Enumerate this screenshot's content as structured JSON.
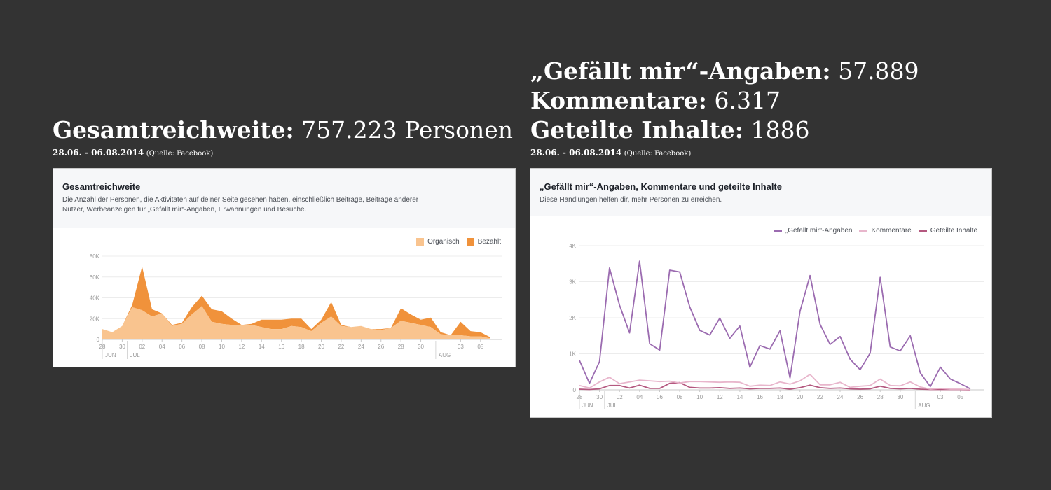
{
  "left": {
    "heading_label": "Gesamtreichweite:",
    "heading_value": "757.223 Personen",
    "dates": "28.06. - 06.08.2014",
    "source": "(Quelle: Facebook)"
  },
  "right": {
    "heading_lines": [
      {
        "label": "„Gefällt mir“-Angaben:",
        "value": "57.889"
      },
      {
        "label": "Kommentare:",
        "value": "6.317"
      },
      {
        "label": "Geteilte Inhalte:",
        "value": "1886"
      }
    ],
    "dates": "28.06. - 06.08.2014",
    "source": "(Quelle: Facebook)"
  },
  "panel_left": {
    "title": "Gesamtreichweite",
    "description_lines": [
      "Die Anzahl der Personen, die Aktivitäten auf deiner Seite gesehen haben, einschließlich Beiträge, Beiträge anderer",
      "Nutzer, Werbeanzeigen für „Gefällt mir“-Angaben, Erwähnungen und Besuche."
    ],
    "legend": [
      {
        "label": "Organisch",
        "color": "#f9c48f"
      },
      {
        "label": "Bezahlt",
        "color": "#f0923b"
      }
    ]
  },
  "panel_right": {
    "title": "„Gefällt mir“-Angaben, Kommentare und geteilte Inhalte",
    "description": "Diese Handlungen helfen dir, mehr Personen zu erreichen.",
    "legend": [
      {
        "label": "„Gefällt mir“-Angaben",
        "color": "#9b6bb0"
      },
      {
        "label": "Kommentare",
        "color": "#e8b6cc"
      },
      {
        "label": "Geteilte Inhalte",
        "color": "#b4587f"
      }
    ]
  },
  "chart_data": [
    {
      "type": "area",
      "stacked": true,
      "x": [
        "28.06",
        "29.06",
        "30.06",
        "01.07",
        "02.07",
        "03.07",
        "04.07",
        "05.07",
        "06.07",
        "07.07",
        "08.07",
        "09.07",
        "10.07",
        "11.07",
        "12.07",
        "13.07",
        "14.07",
        "15.07",
        "16.07",
        "17.07",
        "18.07",
        "19.07",
        "20.07",
        "21.07",
        "22.07",
        "23.07",
        "24.07",
        "25.07",
        "26.07",
        "27.07",
        "28.07",
        "29.07",
        "30.07",
        "31.07",
        "01.08",
        "02.08",
        "03.08",
        "04.08",
        "05.08",
        "06.08"
      ],
      "x_tick_labels": [
        "28",
        "30",
        "02",
        "04",
        "06",
        "08",
        "10",
        "12",
        "14",
        "16",
        "18",
        "20",
        "22",
        "24",
        "26",
        "28",
        "30",
        "03",
        "05"
      ],
      "x_tick_indices": [
        0,
        2,
        4,
        6,
        8,
        10,
        12,
        14,
        16,
        18,
        20,
        22,
        24,
        26,
        28,
        30,
        32,
        36,
        38
      ],
      "month_labels": [
        {
          "label": "JUN",
          "index": 0
        },
        {
          "label": "JUL",
          "index": 3
        },
        {
          "label": "AUG",
          "index": 34
        }
      ],
      "y_ticks": [
        "0",
        "20K",
        "40K",
        "60K",
        "80K"
      ],
      "ylim": [
        0,
        80000
      ],
      "series": [
        {
          "name": "Organisch",
          "values": [
            10000,
            7000,
            13000,
            31000,
            28000,
            22000,
            25000,
            13000,
            15000,
            24000,
            32000,
            17000,
            15000,
            14000,
            14000,
            14000,
            12000,
            10000,
            10000,
            13000,
            12000,
            8000,
            16000,
            22000,
            13000,
            12000,
            13000,
            10000,
            9000,
            11000,
            18000,
            16000,
            14000,
            12000,
            5000,
            4000,
            4000,
            3000,
            3000,
            1000
          ]
        },
        {
          "name": "Bezahlt",
          "values": [
            0,
            0,
            0,
            2000,
            42000,
            7000,
            0,
            1000,
            1000,
            7000,
            10000,
            12000,
            12000,
            6000,
            0,
            1000,
            7000,
            9000,
            9000,
            7000,
            8000,
            2000,
            3000,
            14000,
            1000,
            0,
            0,
            0,
            1000,
            0,
            12000,
            8000,
            5000,
            9000,
            2000,
            0,
            13000,
            5000,
            4000,
            1000
          ]
        }
      ],
      "grid": true,
      "legend_position": "top-right"
    },
    {
      "type": "line",
      "x": [
        "28.06",
        "29.06",
        "30.06",
        "01.07",
        "02.07",
        "03.07",
        "04.07",
        "05.07",
        "06.07",
        "07.07",
        "08.07",
        "09.07",
        "10.07",
        "11.07",
        "12.07",
        "13.07",
        "14.07",
        "15.07",
        "16.07",
        "17.07",
        "18.07",
        "19.07",
        "20.07",
        "21.07",
        "22.07",
        "23.07",
        "24.07",
        "25.07",
        "26.07",
        "27.07",
        "28.07",
        "29.07",
        "30.07",
        "31.07",
        "01.08",
        "02.08",
        "03.08",
        "04.08",
        "05.08",
        "06.08"
      ],
      "x_tick_labels": [
        "28",
        "30",
        "02",
        "04",
        "06",
        "08",
        "10",
        "12",
        "14",
        "16",
        "18",
        "20",
        "22",
        "24",
        "26",
        "28",
        "30",
        "03",
        "05"
      ],
      "x_tick_indices": [
        0,
        2,
        4,
        6,
        8,
        10,
        12,
        14,
        16,
        18,
        20,
        22,
        24,
        26,
        28,
        30,
        32,
        36,
        38
      ],
      "month_labels": [
        {
          "label": "JUN",
          "index": 0
        },
        {
          "label": "JUL",
          "index": 3
        },
        {
          "label": "AUG",
          "index": 34
        }
      ],
      "y_ticks": [
        "0",
        "1K",
        "2K",
        "3K",
        "4K"
      ],
      "ylim": [
        0,
        4000
      ],
      "series": [
        {
          "name": "„Gefällt mir“-Angaben",
          "values": [
            820,
            180,
            780,
            3380,
            2350,
            1580,
            3570,
            1280,
            1100,
            3320,
            3270,
            2300,
            1650,
            1520,
            1990,
            1430,
            1770,
            630,
            1230,
            1130,
            1640,
            330,
            2180,
            3170,
            1820,
            1260,
            1480,
            850,
            560,
            1020,
            3120,
            1190,
            1080,
            1500,
            470,
            90,
            630,
            300,
            170,
            30
          ]
        },
        {
          "name": "Kommentare",
          "values": [
            120,
            50,
            220,
            350,
            170,
            220,
            270,
            250,
            230,
            240,
            190,
            230,
            230,
            220,
            210,
            220,
            210,
            100,
            130,
            120,
            220,
            160,
            250,
            430,
            140,
            140,
            210,
            70,
            100,
            120,
            300,
            120,
            110,
            220,
            80,
            20,
            40,
            20,
            20,
            10
          ]
        },
        {
          "name": "Geteilte Inhalte",
          "values": [
            20,
            10,
            30,
            120,
            120,
            50,
            130,
            40,
            40,
            180,
            200,
            70,
            50,
            50,
            60,
            40,
            50,
            30,
            40,
            40,
            50,
            20,
            60,
            130,
            60,
            40,
            50,
            30,
            20,
            30,
            100,
            40,
            30,
            40,
            20,
            10,
            10,
            10,
            10,
            0
          ]
        }
      ],
      "grid": true,
      "legend_position": "top-right"
    }
  ]
}
